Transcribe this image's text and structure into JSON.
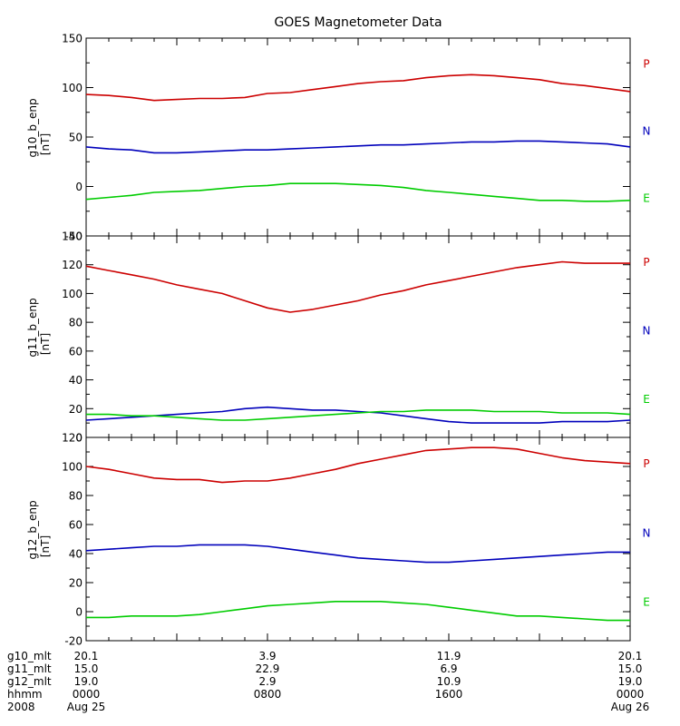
{
  "title": "GOES Magnetometer Data",
  "colors": {
    "P": "#cc0000",
    "N": "#0000bb",
    "E": "#00cc00",
    "axis": "#000000"
  },
  "panel_labels": [
    "P",
    "N",
    "E"
  ],
  "footer": {
    "rows": [
      {
        "label": "g10_mlt",
        "values": [
          "20.1",
          "3.9",
          "11.9",
          "20.1"
        ]
      },
      {
        "label": "g11_mlt",
        "values": [
          "15.0",
          "22.9",
          "6.9",
          "15.0"
        ]
      },
      {
        "label": "g12_mlt",
        "values": [
          "19.0",
          "2.9",
          "10.9",
          "19.0"
        ]
      },
      {
        "label": "hhmm",
        "values": [
          "0000",
          "0800",
          "1600",
          "0000"
        ]
      }
    ],
    "year": "2008",
    "start_date": "Aug 25",
    "end_date": "Aug 26"
  },
  "chart_data": [
    {
      "type": "line",
      "title": "GOES Magnetometer Data",
      "ylabel": "g10_b_enp",
      "yunit": "[nT]",
      "ylim": [
        -50,
        150
      ],
      "yticks": [
        -50,
        0,
        50,
        100,
        150
      ],
      "xlim": [
        0,
        24
      ],
      "x": [
        0,
        1,
        2,
        3,
        4,
        5,
        6,
        7,
        8,
        9,
        10,
        11,
        12,
        13,
        14,
        15,
        16,
        17,
        18,
        19,
        20,
        21,
        22,
        23,
        24
      ],
      "series": [
        {
          "name": "P",
          "color": "#cc0000",
          "values": [
            93,
            92,
            90,
            87,
            88,
            89,
            89,
            90,
            94,
            95,
            98,
            101,
            104,
            106,
            107,
            110,
            112,
            113,
            112,
            110,
            108,
            104,
            102,
            99,
            96
          ]
        },
        {
          "name": "N",
          "color": "#0000bb",
          "values": [
            40,
            38,
            37,
            34,
            34,
            35,
            36,
            37,
            37,
            38,
            39,
            40,
            41,
            42,
            42,
            43,
            44,
            45,
            45,
            46,
            46,
            45,
            44,
            43,
            40
          ]
        },
        {
          "name": "E",
          "color": "#00cc00",
          "values": [
            -13,
            -11,
            -9,
            -6,
            -5,
            -4,
            -2,
            0,
            1,
            3,
            3,
            3,
            2,
            1,
            -1,
            -4,
            -6,
            -8,
            -10,
            -12,
            -14,
            -14,
            -15,
            -15,
            -14
          ]
        }
      ]
    },
    {
      "type": "line",
      "ylabel": "g11_b_enp",
      "yunit": "[nT]",
      "ylim": [
        0,
        140
      ],
      "yticks": [
        0,
        20,
        40,
        60,
        80,
        100,
        120,
        140
      ],
      "xlim": [
        0,
        24
      ],
      "x": [
        0,
        1,
        2,
        3,
        4,
        5,
        6,
        7,
        8,
        9,
        10,
        11,
        12,
        13,
        14,
        15,
        16,
        17,
        18,
        19,
        20,
        21,
        22,
        23,
        24
      ],
      "series": [
        {
          "name": "P",
          "color": "#cc0000",
          "values": [
            119,
            116,
            113,
            110,
            106,
            103,
            100,
            95,
            90,
            87,
            89,
            92,
            95,
            99,
            102,
            106,
            109,
            112,
            115,
            118,
            120,
            122,
            121,
            121,
            121
          ]
        },
        {
          "name": "N",
          "color": "#0000bb",
          "values": [
            12,
            13,
            14,
            15,
            16,
            17,
            18,
            20,
            21,
            20,
            19,
            19,
            18,
            17,
            15,
            13,
            11,
            10,
            10,
            10,
            10,
            11,
            11,
            11,
            12
          ]
        },
        {
          "name": "E",
          "color": "#00cc00",
          "values": [
            16,
            16,
            15,
            15,
            14,
            13,
            12,
            12,
            13,
            14,
            15,
            16,
            17,
            18,
            18,
            19,
            19,
            19,
            18,
            18,
            18,
            17,
            17,
            17,
            16
          ]
        }
      ]
    },
    {
      "type": "line",
      "ylabel": "g12_b_enp",
      "yunit": "[nT]",
      "ylim": [
        -20,
        120
      ],
      "yticks": [
        -20,
        0,
        20,
        40,
        60,
        80,
        100,
        120
      ],
      "xlim": [
        0,
        24
      ],
      "x": [
        0,
        1,
        2,
        3,
        4,
        5,
        6,
        7,
        8,
        9,
        10,
        11,
        12,
        13,
        14,
        15,
        16,
        17,
        18,
        19,
        20,
        21,
        22,
        23,
        24
      ],
      "series": [
        {
          "name": "P",
          "color": "#cc0000",
          "values": [
            100,
            98,
            95,
            92,
            91,
            91,
            89,
            90,
            90,
            92,
            95,
            98,
            102,
            105,
            108,
            111,
            112,
            113,
            113,
            112,
            109,
            106,
            104,
            103,
            102
          ]
        },
        {
          "name": "N",
          "color": "#0000bb",
          "values": [
            42,
            43,
            44,
            45,
            45,
            46,
            46,
            46,
            45,
            43,
            41,
            39,
            37,
            36,
            35,
            34,
            34,
            35,
            36,
            37,
            38,
            39,
            40,
            41,
            41
          ]
        },
        {
          "name": "E",
          "color": "#00cc00",
          "values": [
            -4,
            -4,
            -3,
            -3,
            -3,
            -2,
            0,
            2,
            4,
            5,
            6,
            7,
            7,
            7,
            6,
            5,
            3,
            1,
            -1,
            -3,
            -3,
            -4,
            -5,
            -6,
            -6
          ]
        }
      ]
    }
  ]
}
